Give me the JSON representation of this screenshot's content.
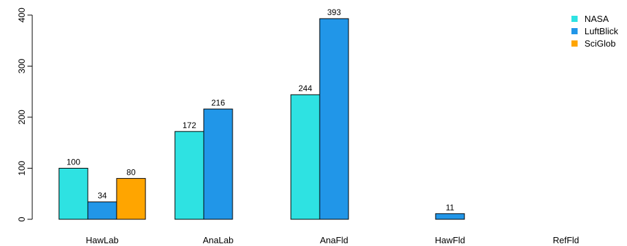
{
  "chart_data": {
    "type": "bar",
    "title": "",
    "xlabel": "",
    "ylabel": "",
    "categories": [
      "HawLab",
      "AnaLab",
      "AnaFld",
      "HawFld",
      "RefFld"
    ],
    "series": [
      {
        "name": "NASA",
        "color": "#2EE2E2",
        "values": [
          100,
          172,
          244,
          null,
          null
        ]
      },
      {
        "name": "LuftBlick",
        "color": "#2196E8",
        "values": [
          34,
          216,
          393,
          11,
          null
        ]
      },
      {
        "name": "SciGlob",
        "color": "#FFA500",
        "values": [
          80,
          null,
          null,
          null,
          null
        ]
      }
    ],
    "ylim": [
      0,
      400
    ],
    "yticks": [
      0,
      100,
      200,
      300,
      400
    ],
    "grid": false,
    "legend_position": "top-right",
    "data_labels": true
  }
}
